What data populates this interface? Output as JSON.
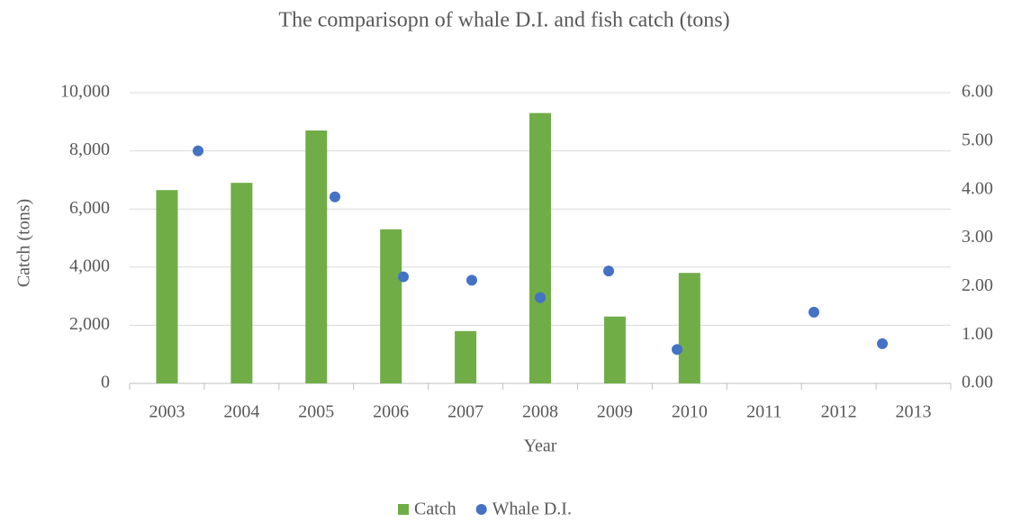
{
  "chart_data": {
    "type": "bar_scatter",
    "title": "The comparisopn of whale D.I. and fish catch (tons)",
    "x_label": "Year",
    "y_label": "Catch (tons)",
    "categories": [
      "2003",
      "2004",
      "2005",
      "2006",
      "2007",
      "2008",
      "2009",
      "2010",
      "2011",
      "2012",
      "2013"
    ],
    "series": [
      {
        "name": "Catch",
        "type": "bar",
        "color": "#70ad47",
        "values": [
          6650,
          6900,
          8700,
          5300,
          1800,
          9300,
          2300,
          3800,
          null,
          null,
          null
        ]
      },
      {
        "name": "Whale D.I.",
        "type": "scatter",
        "axis": "y2",
        "color": "#4472c4",
        "x": [
          1,
          3,
          4,
          5,
          6,
          7,
          8,
          10,
          11
        ],
        "xlim": [
          0,
          12
        ],
        "values": [
          4.8,
          3.85,
          2.2,
          2.13,
          1.77,
          2.32,
          0.7,
          1.47,
          0.82
        ]
      }
    ],
    "ylim": [
      0,
      10000
    ],
    "yticks": [
      0,
      {
        "value": 2000,
        "label": "2,000"
      },
      {
        "value": 4000,
        "label": "4,000"
      },
      {
        "value": 6000,
        "label": "6,000"
      },
      {
        "value": 8000,
        "label": "8,000"
      },
      {
        "value": 10000,
        "label": "10,000"
      }
    ],
    "y2lim": [
      0,
      6
    ],
    "y2ticks": [
      {
        "value": 0,
        "label": "0.00"
      },
      {
        "value": 1,
        "label": "1.00"
      },
      {
        "value": 2,
        "label": "2.00"
      },
      {
        "value": 3,
        "label": "3.00"
      },
      {
        "value": 4,
        "label": "4.00"
      },
      {
        "value": 5,
        "label": "5.00"
      },
      {
        "value": 6,
        "label": "6.00"
      }
    ],
    "grid": true,
    "legend": "bottom"
  }
}
